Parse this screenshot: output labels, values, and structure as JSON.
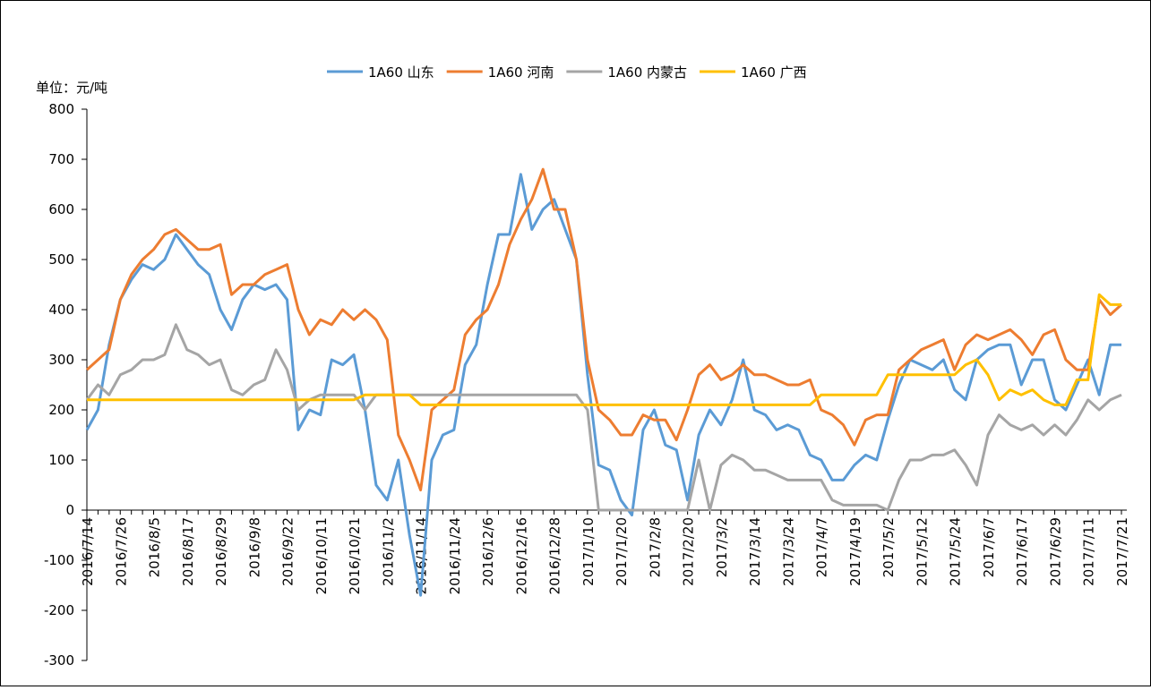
{
  "chart_data": {
    "type": "line",
    "y_axis_label": "单位：元/吨",
    "categories": [
      "2016/7/14",
      null,
      null,
      "2016/7/26",
      null,
      null,
      "2016/8/5",
      null,
      null,
      "2016/8/17",
      null,
      null,
      "2016/8/29",
      null,
      null,
      "2016/9/8",
      null,
      null,
      "2016/9/22",
      null,
      null,
      "2016/10/11",
      null,
      null,
      "2016/10/21",
      null,
      null,
      "2016/11/2",
      null,
      null,
      "2016/11/14",
      null,
      null,
      "2016/11/24",
      null,
      null,
      "2016/12/6",
      null,
      null,
      "2016/12/16",
      null,
      null,
      "2016/12/28",
      null,
      null,
      "2017/1/10",
      null,
      null,
      "2017/1/20",
      null,
      null,
      "2017/2/8",
      null,
      null,
      "2017/2/20",
      null,
      null,
      "2017/3/2",
      null,
      null,
      "2017/3/14",
      null,
      null,
      "2017/3/24",
      null,
      null,
      "2017/4/7",
      null,
      null,
      "2017/4/19",
      null,
      null,
      "2017/5/2",
      null,
      null,
      "2017/5/12",
      null,
      null,
      "2017/5/24",
      null,
      null,
      "2017/6/7",
      null,
      null,
      "2017/6/17",
      null,
      null,
      "2017/6/29",
      null,
      null,
      "2017/7/11",
      null,
      null,
      "2017/7/21"
    ],
    "series": [
      {
        "name": "1A60 山东",
        "color": "#5b9bd5",
        "values": [
          160,
          200,
          330,
          420,
          460,
          490,
          480,
          500,
          550,
          520,
          490,
          470,
          400,
          360,
          420,
          450,
          440,
          450,
          420,
          160,
          200,
          190,
          300,
          290,
          310,
          200,
          50,
          20,
          100,
          -50,
          -170,
          100,
          150,
          160,
          290,
          330,
          450,
          550,
          550,
          670,
          560,
          600,
          620,
          560,
          500,
          270,
          90,
          80,
          20,
          -10,
          160,
          200,
          130,
          120,
          20,
          150,
          200,
          170,
          220,
          300,
          200,
          190,
          160,
          170,
          160,
          110,
          100,
          60,
          60,
          90,
          110,
          100,
          180,
          250,
          300,
          290,
          280,
          300,
          240,
          220,
          300,
          320,
          330,
          330,
          250,
          300,
          300,
          220,
          200,
          250,
          300,
          230,
          330,
          330
        ]
      },
      {
        "name": "1A60 河南",
        "color": "#ed7d31",
        "values": [
          280,
          300,
          320,
          420,
          470,
          500,
          520,
          550,
          560,
          540,
          520,
          520,
          530,
          430,
          450,
          450,
          470,
          480,
          490,
          400,
          350,
          380,
          370,
          400,
          380,
          400,
          380,
          340,
          150,
          100,
          40,
          200,
          220,
          240,
          350,
          380,
          400,
          450,
          530,
          580,
          620,
          680,
          600,
          600,
          500,
          300,
          200,
          180,
          150,
          150,
          190,
          180,
          180,
          140,
          200,
          270,
          290,
          260,
          270,
          290,
          270,
          270,
          260,
          250,
          250,
          260,
          200,
          190,
          170,
          130,
          180,
          190,
          190,
          280,
          300,
          320,
          330,
          340,
          280,
          330,
          350,
          340,
          350,
          360,
          340,
          310,
          350,
          360,
          300,
          280,
          280,
          420,
          390,
          410
        ]
      },
      {
        "name": "1A60 内蒙古",
        "color": "#a5a5a5",
        "values": [
          220,
          250,
          230,
          270,
          280,
          300,
          300,
          310,
          370,
          320,
          310,
          290,
          300,
          240,
          230,
          250,
          260,
          320,
          280,
          200,
          220,
          230,
          230,
          230,
          230,
          200,
          230,
          230,
          230,
          230,
          230,
          230,
          230,
          230,
          230,
          230,
          230,
          230,
          230,
          230,
          230,
          230,
          230,
          230,
          230,
          200,
          0,
          0,
          0,
          0,
          0,
          0,
          0,
          0,
          0,
          100,
          0,
          90,
          110,
          100,
          80,
          80,
          70,
          60,
          60,
          60,
          60,
          20,
          10,
          10,
          10,
          10,
          0,
          60,
          100,
          100,
          110,
          110,
          120,
          90,
          50,
          150,
          190,
          170,
          160,
          170,
          150,
          170,
          150,
          180,
          220,
          200,
          220,
          230
        ]
      },
      {
        "name": "1A60 广西",
        "color": "#ffc000",
        "values": [
          220,
          220,
          220,
          220,
          220,
          220,
          220,
          220,
          220,
          220,
          220,
          220,
          220,
          220,
          220,
          220,
          220,
          220,
          220,
          220,
          220,
          220,
          220,
          220,
          220,
          230,
          230,
          230,
          230,
          230,
          210,
          210,
          210,
          210,
          210,
          210,
          210,
          210,
          210,
          210,
          210,
          210,
          210,
          210,
          210,
          210,
          210,
          210,
          210,
          210,
          210,
          210,
          210,
          210,
          210,
          210,
          210,
          210,
          210,
          210,
          210,
          210,
          210,
          210,
          210,
          210,
          230,
          230,
          230,
          230,
          230,
          230,
          270,
          270,
          270,
          270,
          270,
          270,
          270,
          290,
          300,
          270,
          220,
          240,
          230,
          240,
          220,
          210,
          210,
          260,
          260,
          430,
          410,
          410
        ]
      }
    ],
    "ylim": [
      -300,
      800
    ],
    "yticks": [
      -300,
      -200,
      -100,
      0,
      100,
      200,
      300,
      400,
      500,
      600,
      700,
      800
    ]
  }
}
